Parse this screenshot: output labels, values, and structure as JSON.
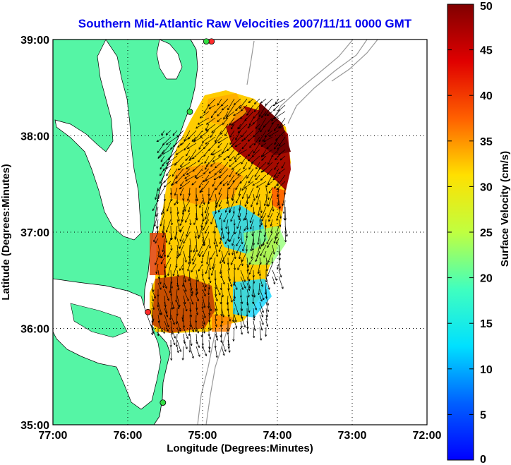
{
  "title": "Southern Mid-Atlantic Raw Velocities 2007/11/11 0000 GMT",
  "x_axis": {
    "label": "Longitude (Degrees:Minutes)",
    "ticks": [
      "77:00",
      "76:00",
      "75:00",
      "74:00",
      "73:00",
      "72:00"
    ]
  },
  "y_axis": {
    "label": "Latitude (Degrees:Minutes)",
    "ticks": [
      "39:00",
      "38:00",
      "37:00",
      "36:00",
      "35:00"
    ]
  },
  "colorbar": {
    "label": "Surface Velocity (cm/s)",
    "ticks": [
      "0",
      "5",
      "10",
      "15",
      "20",
      "25",
      "30",
      "35",
      "40",
      "45",
      "50"
    ],
    "min": 0,
    "max": 50
  },
  "colors": {
    "land": "#55f5a5",
    "title": "#0000ee",
    "bathymetry": "#999999",
    "station_red": "#ff2a2a",
    "station_green": "#33dd44"
  },
  "map_extent": {
    "lon_west": -77,
    "lon_east": -72,
    "lat_south": 35,
    "lat_north": 39
  },
  "grid": "dotted",
  "stations": [
    {
      "color": "red",
      "lon": -74.88,
      "lat": 38.98
    },
    {
      "color": "green",
      "lon": -74.95,
      "lat": 38.98
    },
    {
      "color": "green",
      "lon": -75.17,
      "lat": 38.25
    },
    {
      "color": "red",
      "lon": -75.73,
      "lat": 36.17
    },
    {
      "color": "green",
      "lon": -75.53,
      "lat": 35.23
    }
  ]
}
